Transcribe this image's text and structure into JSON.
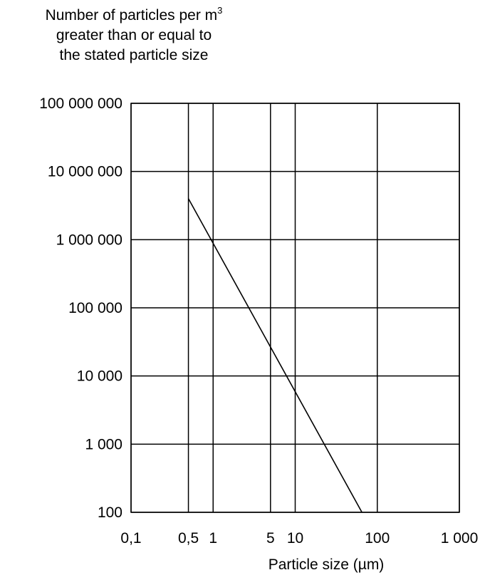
{
  "chart_data": {
    "type": "line",
    "x_scale": "log",
    "y_scale": "log",
    "xlim": [
      0.1,
      1000
    ],
    "ylim": [
      100,
      100000000
    ],
    "grid": true,
    "ylabel_lines": [
      "Number of particles per m",
      "greater than or equal to",
      "the stated particle size"
    ],
    "ylabel_superscript": "3",
    "xlabel": "Particle size (µm)",
    "x_ticks": [
      {
        "value": 0.1,
        "label": "0,1"
      },
      {
        "value": 0.5,
        "label": "0,5"
      },
      {
        "value": 1,
        "label": "1"
      },
      {
        "value": 5,
        "label": "5"
      },
      {
        "value": 10,
        "label": "10"
      },
      {
        "value": 100,
        "label": "100"
      },
      {
        "value": 1000,
        "label": "1 000"
      }
    ],
    "y_ticks": [
      {
        "value": 100,
        "label": "100"
      },
      {
        "value": 1000,
        "label": "1 000"
      },
      {
        "value": 10000,
        "label": "10 000"
      },
      {
        "value": 100000,
        "label": "100 000"
      },
      {
        "value": 1000000,
        "label": "1 000 000"
      },
      {
        "value": 10000000,
        "label": "10 000 000"
      },
      {
        "value": 100000000,
        "label": "100 000 000"
      }
    ],
    "series": [
      {
        "points": [
          {
            "x": 0.5,
            "y": 4000000
          },
          {
            "x": 65,
            "y": 100
          }
        ]
      }
    ]
  }
}
